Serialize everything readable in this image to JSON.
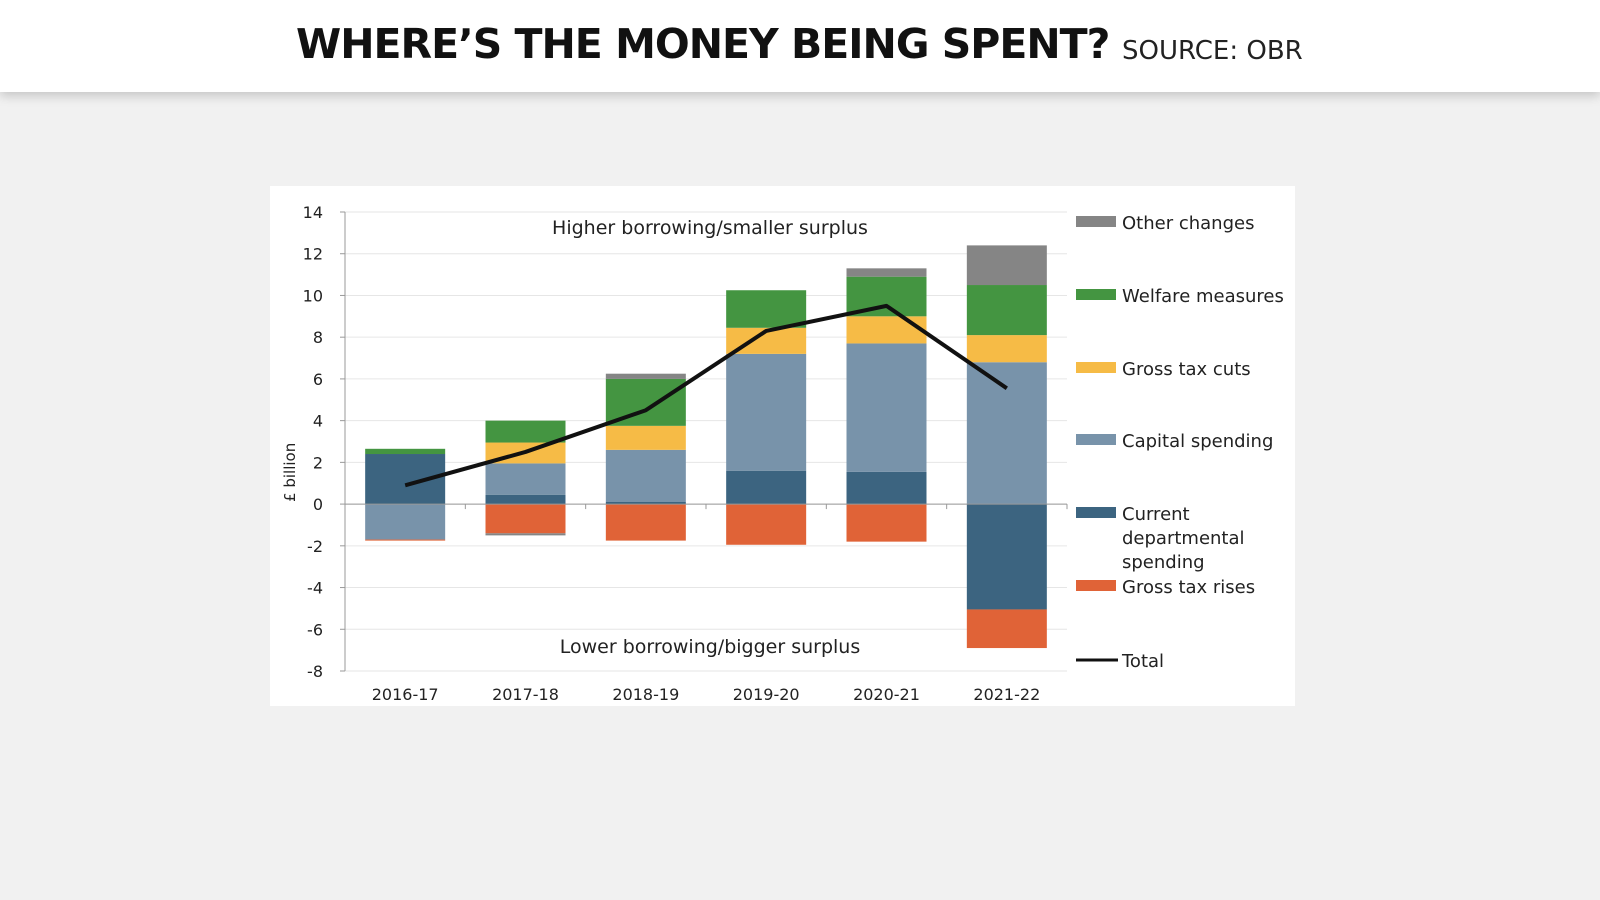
{
  "header": {
    "title": "WHERE’S THE MONEY BEING SPENT?",
    "source": "SOURCE: OBR"
  },
  "chart_data": {
    "type": "bar",
    "stacked": true,
    "ylabel": "£ billion",
    "ylim": [
      -8,
      14
    ],
    "yticks": [
      14,
      12,
      10,
      8,
      6,
      4,
      2,
      0,
      -2,
      -4,
      -6,
      -8
    ],
    "grid": true,
    "legend_placement": "right",
    "annotations": [
      "Higher borrowing/smaller surplus",
      "Lower borrowing/bigger surplus"
    ],
    "categories": [
      "2016-17",
      "2017-18",
      "2018-19",
      "2019-20",
      "2020-21",
      "2021-22"
    ],
    "series": [
      {
        "name": "Other changes",
        "color": "#858585",
        "values": [
          0,
          -0.1,
          0.25,
          0,
          0.4,
          1.9
        ]
      },
      {
        "name": "Welfare measures",
        "color": "#449541",
        "values": [
          0.25,
          1.05,
          2.25,
          1.8,
          1.9,
          2.4
        ]
      },
      {
        "name": "Gross tax cuts",
        "color": "#f6bb46",
        "values": [
          0,
          1.0,
          1.15,
          1.25,
          1.3,
          1.3
        ]
      },
      {
        "name": "Capital spending",
        "color": "#7893aa",
        "values": [
          -1.7,
          1.5,
          2.5,
          5.6,
          6.15,
          6.8
        ]
      },
      {
        "name": "Current departmental spending",
        "color": "#3c6480",
        "values": [
          2.4,
          0.45,
          0.1,
          1.6,
          1.55,
          -5.05
        ]
      },
      {
        "name": "Gross tax rises",
        "color": "#e06337",
        "values": [
          -0.05,
          -1.4,
          -1.75,
          -1.95,
          -1.8,
          -1.85
        ]
      }
    ],
    "total": {
      "name": "Total",
      "color": "#111111",
      "values": [
        0.9,
        2.5,
        4.5,
        8.3,
        9.5,
        5.55
      ]
    }
  }
}
